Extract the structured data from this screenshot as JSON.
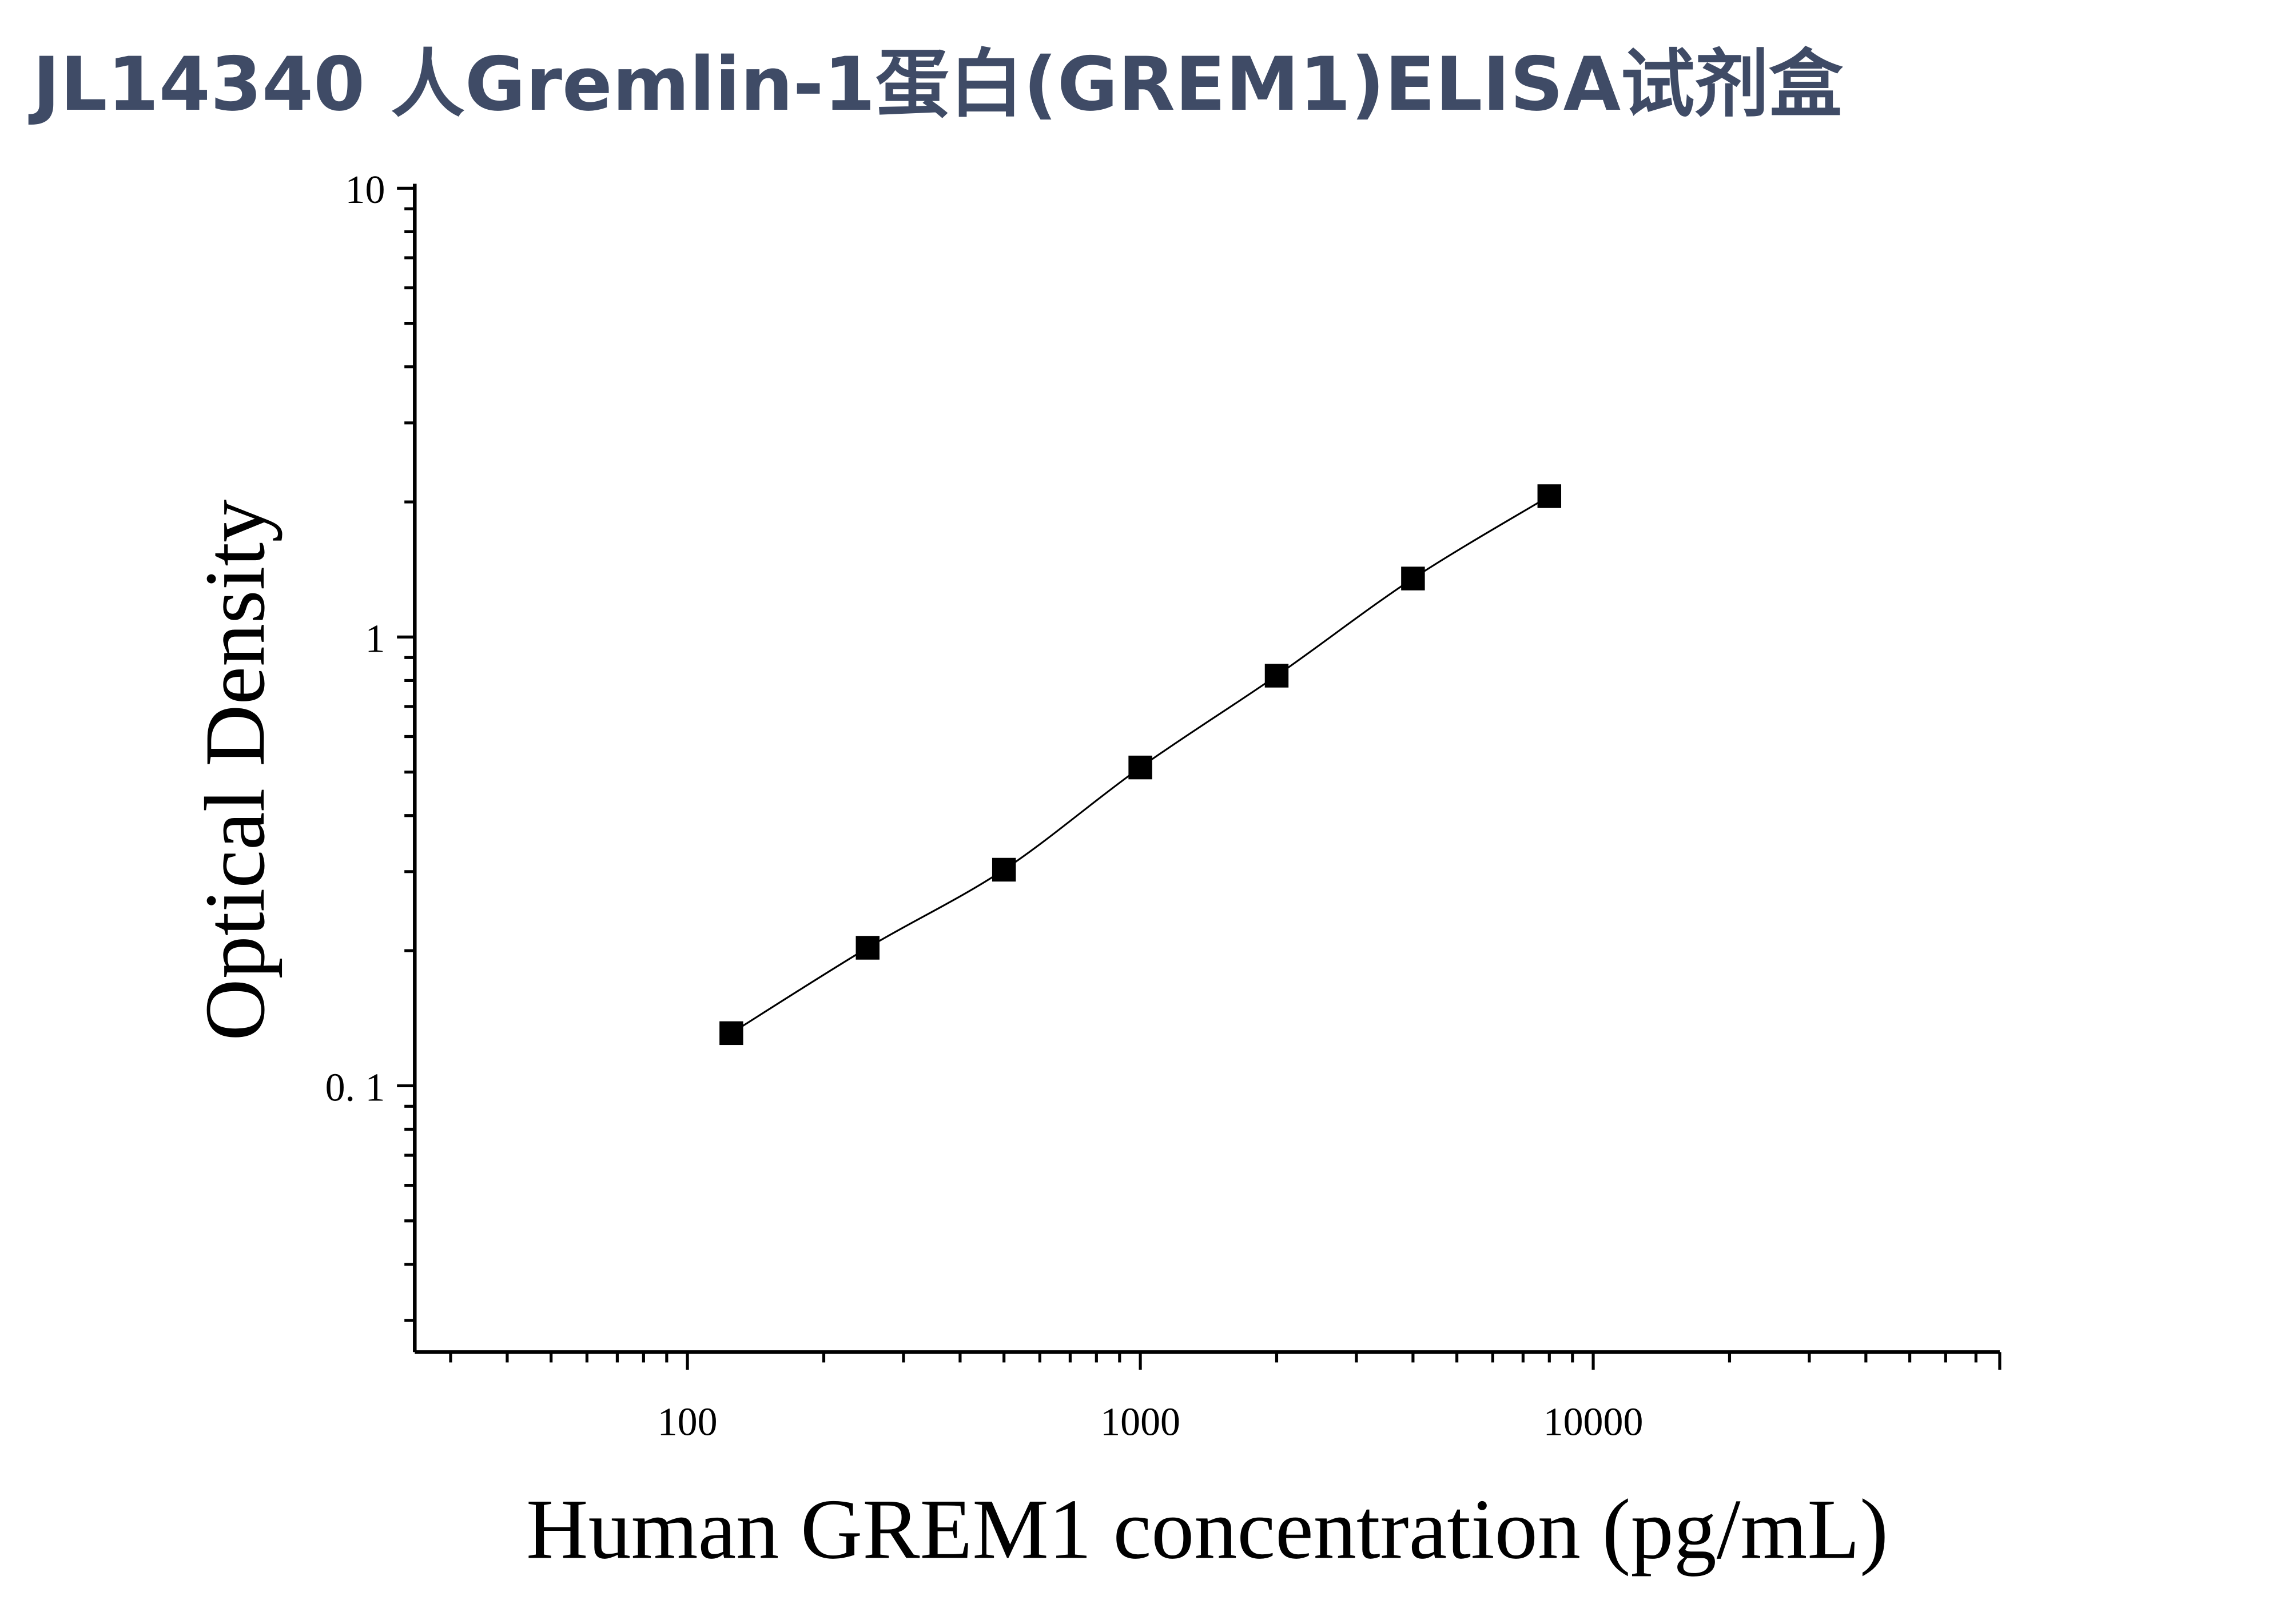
{
  "title": "JL14340 人Gremlin-1蛋白(GREM1)ELISA试剂盒",
  "chart_data": {
    "type": "scatter",
    "title": "JL14340 人Gremlin-1蛋白(GREM1)ELISA试剂盒",
    "xlabel": "Human GREM1 concentration (pg/mL)",
    "ylabel": "Optical Density",
    "xscale": "log",
    "yscale": "log",
    "xlim": [
      25,
      79000
    ],
    "ylim": [
      0.0255,
      10
    ],
    "x_ticks": [
      100,
      1000,
      10000
    ],
    "x_tick_labels": [
      "100",
      "1000",
      "10000"
    ],
    "y_ticks": [
      0.1,
      1,
      10
    ],
    "y_tick_labels": [
      "0. 1",
      "1",
      "10"
    ],
    "grid": false,
    "marker": "square",
    "fit_line": true,
    "color": "#000000",
    "x": [
      125,
      250,
      500,
      1000,
      2000,
      4000,
      8000
    ],
    "y": [
      0.131,
      0.203,
      0.303,
      0.512,
      0.82,
      1.35,
      2.06
    ]
  }
}
